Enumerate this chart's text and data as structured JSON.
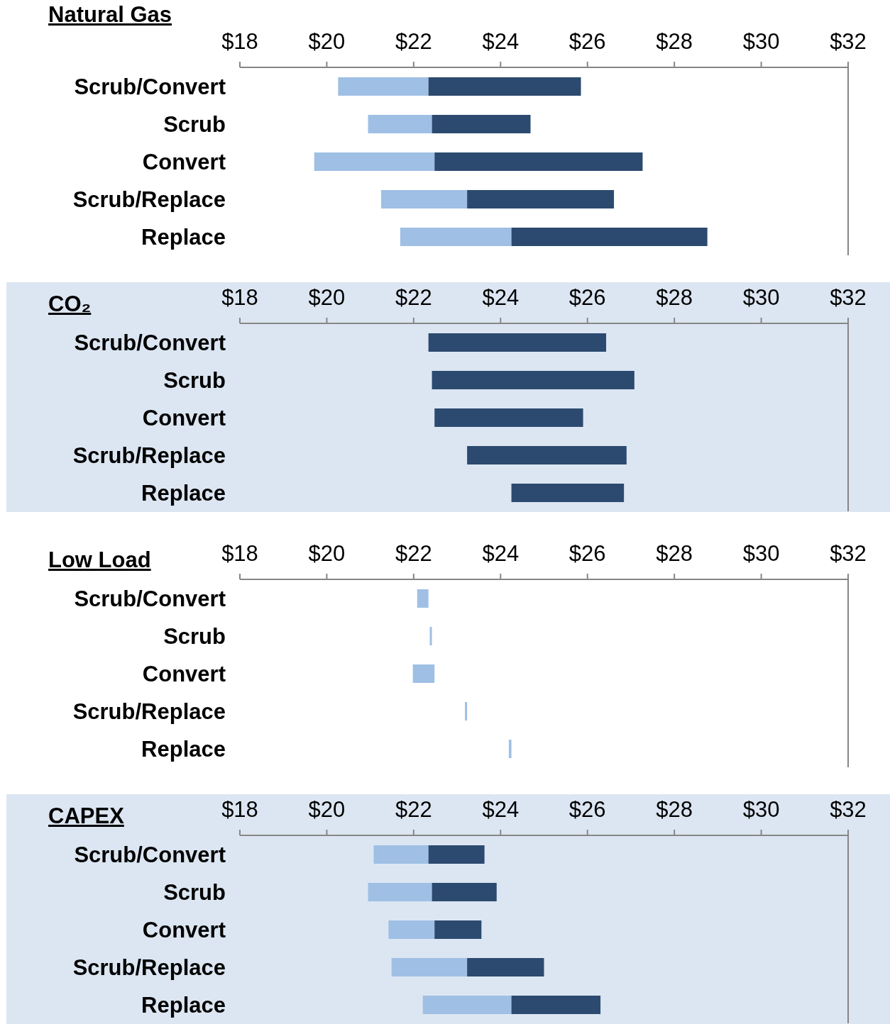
{
  "chart_data": [
    {
      "type": "bar",
      "title": "Natural Gas",
      "orientation": "horizontal",
      "categories": [
        "Scrub/Convert",
        "Scrub",
        "Convert",
        "Scrub/Replace",
        "Replace"
      ],
      "series": [
        {
          "color": "#9fbfe5",
          "base": [
            20.26,
            20.95,
            19.71,
            21.25,
            21.69
          ],
          "values": [
            2.08,
            1.47,
            2.77,
            1.98,
            2.56
          ]
        },
        {
          "color": "#2c4a6f",
          "base": [
            22.34,
            22.42,
            22.48,
            23.23,
            24.25
          ],
          "values": [
            3.51,
            2.27,
            4.79,
            3.38,
            4.51
          ]
        }
      ],
      "xlim": [
        18,
        32
      ],
      "xticks": [
        {
          "value": 18,
          "label": "$18"
        },
        {
          "value": 20,
          "label": "$20"
        },
        {
          "value": 22,
          "label": "$22"
        },
        {
          "value": 24,
          "label": "$24"
        },
        {
          "value": 26,
          "label": "$26"
        },
        {
          "value": 28,
          "label": "$28"
        },
        {
          "value": 30,
          "label": "$30"
        },
        {
          "value": 32,
          "label": "$32"
        }
      ]
    },
    {
      "type": "bar",
      "title": "CO₂",
      "orientation": "horizontal",
      "categories": [
        "Scrub/Convert",
        "Scrub",
        "Convert",
        "Scrub/Replace",
        "Replace"
      ],
      "series": [
        {
          "color": "#2c4a6f",
          "base": [
            22.34,
            22.42,
            22.48,
            23.23,
            24.25
          ],
          "values": [
            4.09,
            4.66,
            3.42,
            3.67,
            2.59
          ]
        }
      ],
      "xlim": [
        18,
        32
      ],
      "xticks": [
        {
          "value": 18,
          "label": "$18"
        },
        {
          "value": 20,
          "label": "$20"
        },
        {
          "value": 22,
          "label": "$22"
        },
        {
          "value": 24,
          "label": "$24"
        },
        {
          "value": 26,
          "label": "$26"
        },
        {
          "value": 28,
          "label": "$28"
        },
        {
          "value": 30,
          "label": "$30"
        },
        {
          "value": 32,
          "label": "$32"
        }
      ]
    },
    {
      "type": "bar",
      "title": "Low Load",
      "orientation": "horizontal",
      "categories": [
        "Scrub/Convert",
        "Scrub",
        "Convert",
        "Scrub/Replace",
        "Replace"
      ],
      "series": [
        {
          "color": "#9fbfe5",
          "base": [
            22.08,
            22.37,
            21.98,
            23.18,
            24.19
          ],
          "values": [
            0.26,
            0.05,
            0.5,
            0.05,
            0.06
          ]
        }
      ],
      "xlim": [
        18,
        32
      ],
      "xticks": [
        {
          "value": 18,
          "label": "$18"
        },
        {
          "value": 20,
          "label": "$20"
        },
        {
          "value": 22,
          "label": "$22"
        },
        {
          "value": 24,
          "label": "$24"
        },
        {
          "value": 26,
          "label": "$26"
        },
        {
          "value": 28,
          "label": "$28"
        },
        {
          "value": 30,
          "label": "$30"
        },
        {
          "value": 32,
          "label": "$32"
        }
      ]
    },
    {
      "type": "bar",
      "title": "CAPEX",
      "orientation": "horizontal",
      "categories": [
        "Scrub/Convert",
        "Scrub",
        "Convert",
        "Scrub/Replace",
        "Replace"
      ],
      "series": [
        {
          "color": "#9fbfe5",
          "base": [
            21.08,
            20.95,
            21.42,
            21.49,
            22.21
          ],
          "values": [
            1.26,
            1.47,
            1.06,
            1.74,
            2.04
          ]
        },
        {
          "color": "#2c4a6f",
          "base": [
            22.34,
            22.42,
            22.48,
            23.23,
            24.25
          ],
          "values": [
            1.29,
            1.49,
            1.08,
            1.77,
            2.05
          ]
        }
      ],
      "xlim": [
        18,
        32
      ],
      "xticks": [
        {
          "value": 18,
          "label": "$18"
        },
        {
          "value": 20,
          "label": "$20"
        },
        {
          "value": 22,
          "label": "$22"
        },
        {
          "value": 24,
          "label": "$24"
        },
        {
          "value": 26,
          "label": "$26"
        },
        {
          "value": 28,
          "label": "$28"
        },
        {
          "value": 30,
          "label": "$30"
        },
        {
          "value": 32,
          "label": "$32"
        }
      ]
    }
  ]
}
